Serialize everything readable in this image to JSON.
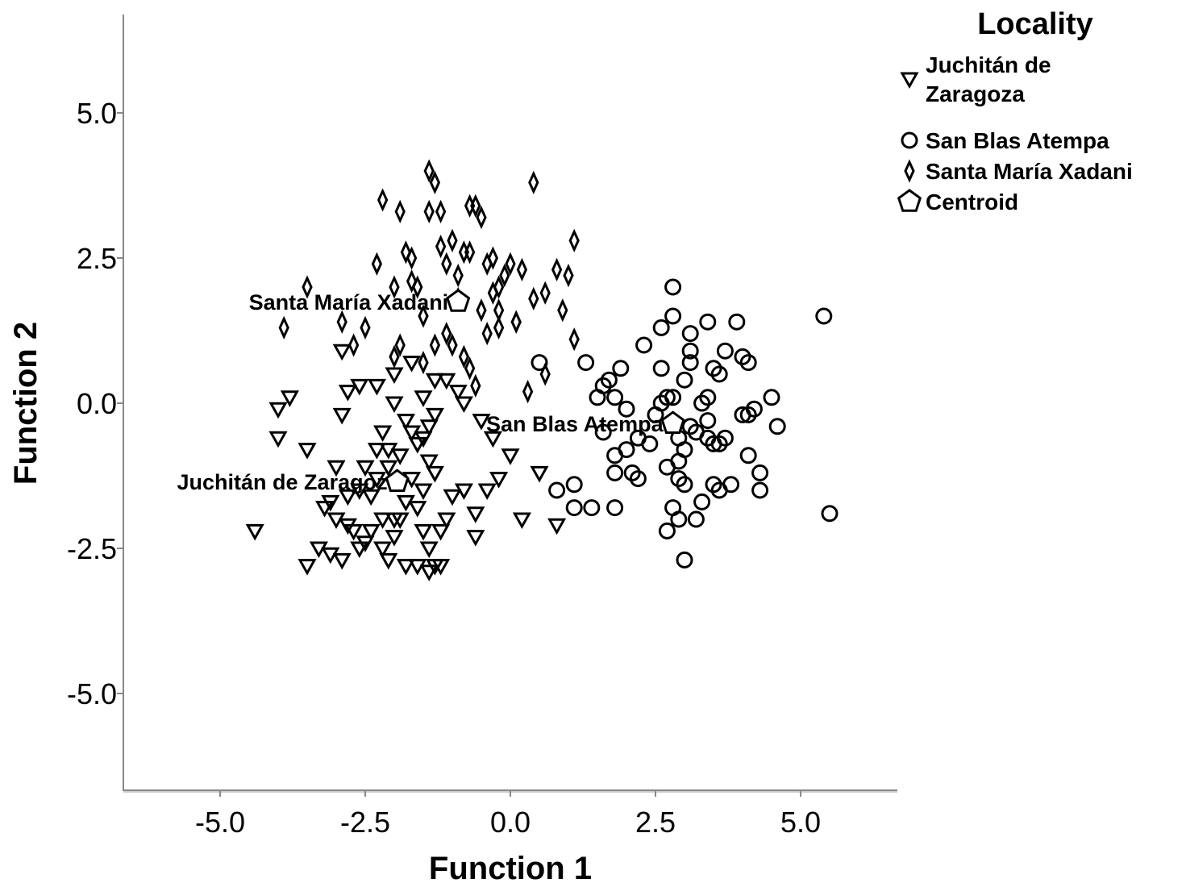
{
  "chart_data": {
    "type": "scatter",
    "xlabel": "Function 1",
    "ylabel": "Function 2",
    "xlim": [
      -6.6,
      6.6
    ],
    "ylim": [
      -6.7,
      6.7
    ],
    "xticks": [
      -5.0,
      -2.5,
      0.0,
      2.5,
      5.0
    ],
    "yticks": [
      5.0,
      2.5,
      0.0,
      -2.5,
      -5.0
    ],
    "xtick_labels": [
      "-5.0",
      "-2.5",
      "0.0",
      "2.5",
      "5.0"
    ],
    "ytick_labels": [
      "5.0",
      "2.5",
      "0.0",
      "-2.5",
      "-5.0"
    ],
    "legend": {
      "title": "Locality",
      "placement": "top-right",
      "entries": [
        {
          "label_lines": [
            "Juchitán de",
            "Zaragoza"
          ],
          "marker": "triangle-down"
        },
        {
          "label_lines": [
            "San Blas Atempa"
          ],
          "marker": "circle"
        },
        {
          "label_lines": [
            "Santa María Xadani"
          ],
          "marker": "diamond"
        },
        {
          "label_lines": [
            "Centroid"
          ],
          "marker": "pentagon"
        }
      ]
    },
    "series": [
      {
        "name": "Juchitán de Zaragoza",
        "marker": "triangle-down",
        "points": [
          [
            -4.4,
            -2.2
          ],
          [
            -3.5,
            -2.8
          ],
          [
            -4.0,
            -0.1
          ],
          [
            -3.8,
            0.1
          ],
          [
            -4.0,
            -0.6
          ],
          [
            -3.5,
            -0.8
          ],
          [
            -3.0,
            -1.1
          ],
          [
            -3.2,
            -1.8
          ],
          [
            -3.3,
            -2.5
          ],
          [
            -3.1,
            -2.6
          ],
          [
            -2.9,
            -2.7
          ],
          [
            -3.0,
            -2.0
          ],
          [
            -2.8,
            -2.1
          ],
          [
            -2.6,
            -2.5
          ],
          [
            -2.5,
            -2.4
          ],
          [
            -2.4,
            -2.2
          ],
          [
            -2.2,
            -2.5
          ],
          [
            -2.1,
            -2.7
          ],
          [
            -2.0,
            -2.3
          ],
          [
            -1.9,
            -2.0
          ],
          [
            -1.8,
            -1.7
          ],
          [
            -1.6,
            -1.8
          ],
          [
            -1.5,
            -2.2
          ],
          [
            -1.4,
            -2.5
          ],
          [
            -1.3,
            -2.8
          ],
          [
            -1.2,
            -2.8
          ],
          [
            -1.4,
            -2.9
          ],
          [
            -1.6,
            -2.8
          ],
          [
            -1.8,
            -2.8
          ],
          [
            -1.1,
            -2.0
          ],
          [
            -1.0,
            -1.6
          ],
          [
            -0.8,
            -1.5
          ],
          [
            -0.6,
            -1.9
          ],
          [
            -0.6,
            -2.3
          ],
          [
            -0.4,
            -1.5
          ],
          [
            -0.2,
            -1.3
          ],
          [
            0.2,
            -2.0
          ],
          [
            0.5,
            -1.2
          ],
          [
            0.8,
            -2.1
          ],
          [
            0.0,
            -0.9
          ],
          [
            -0.3,
            -0.6
          ],
          [
            -0.5,
            -0.3
          ],
          [
            -1.5,
            0.1
          ],
          [
            -1.3,
            -0.2
          ],
          [
            -1.5,
            -0.6
          ],
          [
            -1.7,
            -0.5
          ],
          [
            -1.8,
            -0.3
          ],
          [
            -2.0,
            0.0
          ],
          [
            -2.2,
            -0.5
          ],
          [
            -2.3,
            -0.8
          ],
          [
            -2.5,
            -1.1
          ],
          [
            -2.6,
            -1.5
          ],
          [
            -2.8,
            -1.6
          ],
          [
            -2.9,
            -0.2
          ],
          [
            -2.8,
            0.2
          ],
          [
            -2.6,
            0.3
          ],
          [
            -2.3,
            0.3
          ],
          [
            -2.0,
            0.5
          ],
          [
            -1.7,
            0.7
          ],
          [
            -1.3,
            0.4
          ],
          [
            -1.1,
            0.4
          ],
          [
            -0.9,
            0.2
          ],
          [
            -0.8,
            0.0
          ],
          [
            -1.4,
            -0.4
          ],
          [
            -1.6,
            -0.7
          ],
          [
            -1.9,
            -0.9
          ],
          [
            -2.1,
            -1.1
          ],
          [
            -2.3,
            -1.3
          ],
          [
            -1.7,
            -1.3
          ],
          [
            -1.5,
            -1.5
          ],
          [
            -1.3,
            -1.2
          ],
          [
            -2.7,
            -2.2
          ],
          [
            -2.0,
            -2.0
          ],
          [
            -2.4,
            -1.6
          ],
          [
            -1.2,
            -2.2
          ],
          [
            -2.9,
            0.9
          ],
          [
            -2.1,
            -0.8
          ],
          [
            -3.1,
            -1.7
          ],
          [
            -1.4,
            -1.0
          ],
          [
            -2.2,
            -2.0
          ]
        ]
      },
      {
        "name": "San Blas Atempa",
        "marker": "circle",
        "points": [
          [
            0.5,
            0.7
          ],
          [
            0.8,
            -1.5
          ],
          [
            1.1,
            -1.8
          ],
          [
            1.1,
            -1.4
          ],
          [
            1.4,
            -1.8
          ],
          [
            1.3,
            0.7
          ],
          [
            1.5,
            0.1
          ],
          [
            1.6,
            0.3
          ],
          [
            1.7,
            0.4
          ],
          [
            1.8,
            0.1
          ],
          [
            1.9,
            0.6
          ],
          [
            1.8,
            -0.9
          ],
          [
            1.8,
            -1.2
          ],
          [
            1.8,
            -1.8
          ],
          [
            2.0,
            -0.8
          ],
          [
            2.1,
            -1.2
          ],
          [
            2.2,
            -1.3
          ],
          [
            2.3,
            1.0
          ],
          [
            2.5,
            -0.2
          ],
          [
            2.6,
            0.0
          ],
          [
            2.6,
            0.6
          ],
          [
            2.6,
            1.3
          ],
          [
            2.7,
            0.1
          ],
          [
            2.7,
            -1.1
          ],
          [
            2.7,
            -2.2
          ],
          [
            2.8,
            2.0
          ],
          [
            2.8,
            1.5
          ],
          [
            2.8,
            -1.8
          ],
          [
            2.9,
            -1.0
          ],
          [
            2.9,
            -2.0
          ],
          [
            3.0,
            -1.4
          ],
          [
            3.0,
            -2.7
          ],
          [
            3.0,
            0.4
          ],
          [
            3.1,
            0.7
          ],
          [
            3.1,
            0.9
          ],
          [
            3.1,
            1.2
          ],
          [
            3.1,
            -0.4
          ],
          [
            3.2,
            -2.0
          ],
          [
            3.3,
            0.0
          ],
          [
            3.3,
            -1.7
          ],
          [
            3.4,
            -0.3
          ],
          [
            3.4,
            -0.6
          ],
          [
            3.4,
            1.4
          ],
          [
            3.5,
            -1.4
          ],
          [
            3.5,
            -0.7
          ],
          [
            3.5,
            0.6
          ],
          [
            3.6,
            0.5
          ],
          [
            3.6,
            -0.7
          ],
          [
            3.6,
            -1.5
          ],
          [
            3.7,
            -0.6
          ],
          [
            3.7,
            0.9
          ],
          [
            3.8,
            -1.4
          ],
          [
            3.9,
            1.4
          ],
          [
            4.0,
            0.8
          ],
          [
            4.0,
            -0.2
          ],
          [
            4.1,
            0.7
          ],
          [
            4.1,
            -0.2
          ],
          [
            4.1,
            -0.9
          ],
          [
            4.2,
            -0.1
          ],
          [
            4.3,
            -1.5
          ],
          [
            4.3,
            -1.2
          ],
          [
            4.5,
            0.1
          ],
          [
            4.6,
            -0.4
          ],
          [
            5.4,
            1.5
          ],
          [
            5.5,
            -1.9
          ],
          [
            2.0,
            -0.1
          ],
          [
            2.4,
            -0.7
          ],
          [
            2.9,
            -0.6
          ],
          [
            3.0,
            -0.8
          ],
          [
            3.2,
            -0.5
          ],
          [
            3.4,
            0.1
          ],
          [
            2.8,
            0.1
          ],
          [
            1.6,
            -0.5
          ],
          [
            2.2,
            -0.6
          ],
          [
            2.9,
            -1.3
          ]
        ]
      },
      {
        "name": "Santa María Xadani",
        "marker": "diamond",
        "points": [
          [
            -3.9,
            1.3
          ],
          [
            -3.5,
            2.0
          ],
          [
            -2.9,
            1.4
          ],
          [
            -2.7,
            1.0
          ],
          [
            -2.5,
            1.3
          ],
          [
            -2.3,
            2.4
          ],
          [
            -2.2,
            3.5
          ],
          [
            -2.0,
            2.0
          ],
          [
            -1.9,
            3.3
          ],
          [
            -1.8,
            2.6
          ],
          [
            -1.7,
            2.1
          ],
          [
            -1.6,
            2.0
          ],
          [
            -1.5,
            1.5
          ],
          [
            -1.4,
            4.0
          ],
          [
            -1.4,
            3.3
          ],
          [
            -1.3,
            3.8
          ],
          [
            -1.2,
            3.3
          ],
          [
            -1.2,
            2.7
          ],
          [
            -1.1,
            1.2
          ],
          [
            -1.0,
            2.8
          ],
          [
            -0.9,
            2.2
          ],
          [
            -0.8,
            2.6
          ],
          [
            -0.7,
            3.4
          ],
          [
            -0.6,
            3.4
          ],
          [
            -0.5,
            3.2
          ],
          [
            -0.4,
            2.4
          ],
          [
            -0.3,
            2.5
          ],
          [
            -0.3,
            1.9
          ],
          [
            -0.2,
            1.3
          ],
          [
            -0.1,
            2.2
          ],
          [
            0.0,
            2.4
          ],
          [
            0.1,
            1.4
          ],
          [
            0.2,
            2.3
          ],
          [
            0.4,
            1.8
          ],
          [
            0.6,
            1.9
          ],
          [
            0.8,
            2.3
          ],
          [
            0.9,
            1.6
          ],
          [
            1.1,
            2.8
          ],
          [
            1.0,
            2.2
          ],
          [
            1.1,
            1.1
          ],
          [
            0.3,
            0.2
          ],
          [
            0.4,
            3.8
          ],
          [
            -0.8,
            0.8
          ],
          [
            -0.7,
            0.6
          ],
          [
            -0.6,
            0.3
          ],
          [
            -1.0,
            1.0
          ],
          [
            -1.3,
            1.0
          ],
          [
            -1.5,
            0.7
          ],
          [
            -1.9,
            1.0
          ],
          [
            -2.0,
            0.8
          ],
          [
            -1.7,
            2.5
          ],
          [
            -1.1,
            2.4
          ],
          [
            -0.5,
            1.6
          ],
          [
            -0.2,
            1.6
          ],
          [
            0.6,
            0.5
          ],
          [
            0.1,
            1.4
          ],
          [
            -0.4,
            1.2
          ],
          [
            -0.9,
            1.8
          ],
          [
            -0.7,
            2.6
          ],
          [
            -0.2,
            2.0
          ]
        ]
      },
      {
        "name": "Centroid",
        "marker": "pentagon",
        "points": [
          [
            -0.9,
            1.75,
            "Santa María Xadani"
          ],
          [
            2.8,
            -0.35,
            "San Blas Atempa"
          ],
          [
            -1.95,
            -1.35,
            "Juchitán de Zaragoz"
          ]
        ]
      }
    ]
  }
}
